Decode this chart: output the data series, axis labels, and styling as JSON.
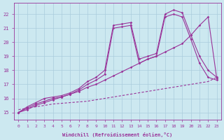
{
  "xlabel": "Windchill (Refroidissement éolien,°C)",
  "bg_color": "#cce8f0",
  "grid_color": "#aaccdd",
  "line_color": "#993399",
  "xlim": [
    -0.5,
    23.5
  ],
  "ylim": [
    14.5,
    22.8
  ],
  "yticks": [
    15,
    16,
    17,
    18,
    19,
    20,
    21,
    22
  ],
  "xticks": [
    0,
    1,
    2,
    3,
    4,
    5,
    6,
    7,
    8,
    9,
    10,
    11,
    12,
    13,
    14,
    15,
    16,
    17,
    18,
    19,
    20,
    21,
    22,
    23
  ],
  "line1_x": [
    0,
    1,
    2,
    3,
    4,
    5,
    6,
    7,
    8,
    9,
    10,
    11,
    12,
    13,
    14,
    15,
    16,
    17,
    18,
    19,
    20,
    21,
    22,
    23
  ],
  "line1_y": [
    15.0,
    15.4,
    15.7,
    16.0,
    16.1,
    16.2,
    16.4,
    16.7,
    17.2,
    17.5,
    18.0,
    21.2,
    21.3,
    21.4,
    18.8,
    19.0,
    19.2,
    22.0,
    22.3,
    22.1,
    20.5,
    19.0,
    18.0,
    17.5
  ],
  "line2_x": [
    0,
    1,
    2,
    3,
    4,
    5,
    6,
    7,
    8,
    9,
    10,
    11,
    12,
    13,
    14,
    15,
    16,
    17,
    18,
    19,
    20,
    21,
    22,
    23
  ],
  "line2_y": [
    15.0,
    15.3,
    15.6,
    15.8,
    16.0,
    16.1,
    16.3,
    16.6,
    17.0,
    17.3,
    17.7,
    21.0,
    21.1,
    21.2,
    18.5,
    18.8,
    19.0,
    21.8,
    22.0,
    21.8,
    20.2,
    18.5,
    17.5,
    17.3
  ],
  "line3_x": [
    0,
    1,
    2,
    3,
    4,
    5,
    6,
    7,
    8,
    9,
    10,
    11,
    12,
    13,
    14,
    15,
    16,
    17,
    18,
    19,
    20,
    21,
    22,
    23
  ],
  "line3_y": [
    15.0,
    15.2,
    15.5,
    15.7,
    15.9,
    16.1,
    16.3,
    16.5,
    16.8,
    17.0,
    17.3,
    17.6,
    17.9,
    18.2,
    18.5,
    18.8,
    19.0,
    19.3,
    19.6,
    19.9,
    20.5,
    21.2,
    21.8,
    17.4
  ],
  "line_dashed_x": [
    0,
    1,
    2,
    3,
    4,
    5,
    6,
    7,
    8,
    9,
    10,
    11,
    12,
    13,
    14,
    15,
    16,
    17,
    18,
    19,
    20,
    21,
    22,
    23
  ],
  "line_dashed_y": [
    15.2,
    15.3,
    15.4,
    15.5,
    15.6,
    15.65,
    15.7,
    15.75,
    15.8,
    15.9,
    16.0,
    16.1,
    16.2,
    16.3,
    16.4,
    16.5,
    16.6,
    16.7,
    16.8,
    16.9,
    17.0,
    17.1,
    17.2,
    17.5
  ]
}
